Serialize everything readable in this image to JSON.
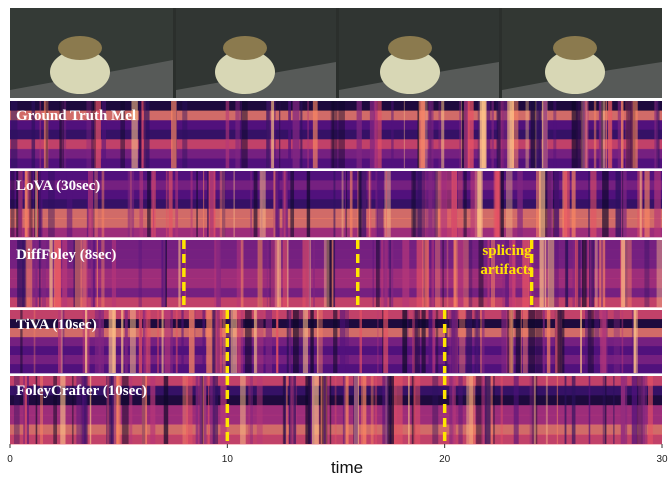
{
  "axis": {
    "label": "time",
    "xlim": [
      0,
      30
    ],
    "xticks": [
      0,
      10,
      20,
      30
    ]
  },
  "panels": [
    {
      "label": "Ground Truth Mel"
    },
    {
      "label": "LoVA  (30sec)"
    },
    {
      "label": "DiffFoley (8sec)",
      "splices": [
        8,
        16,
        24
      ]
    },
    {
      "label": "TiVA  (10sec)",
      "splices": [
        10,
        20
      ]
    },
    {
      "label": "FoleyCrafter  (10sec)",
      "splices": [
        10,
        20
      ]
    }
  ],
  "annotation": [
    "splicing",
    "artifacts"
  ]
}
